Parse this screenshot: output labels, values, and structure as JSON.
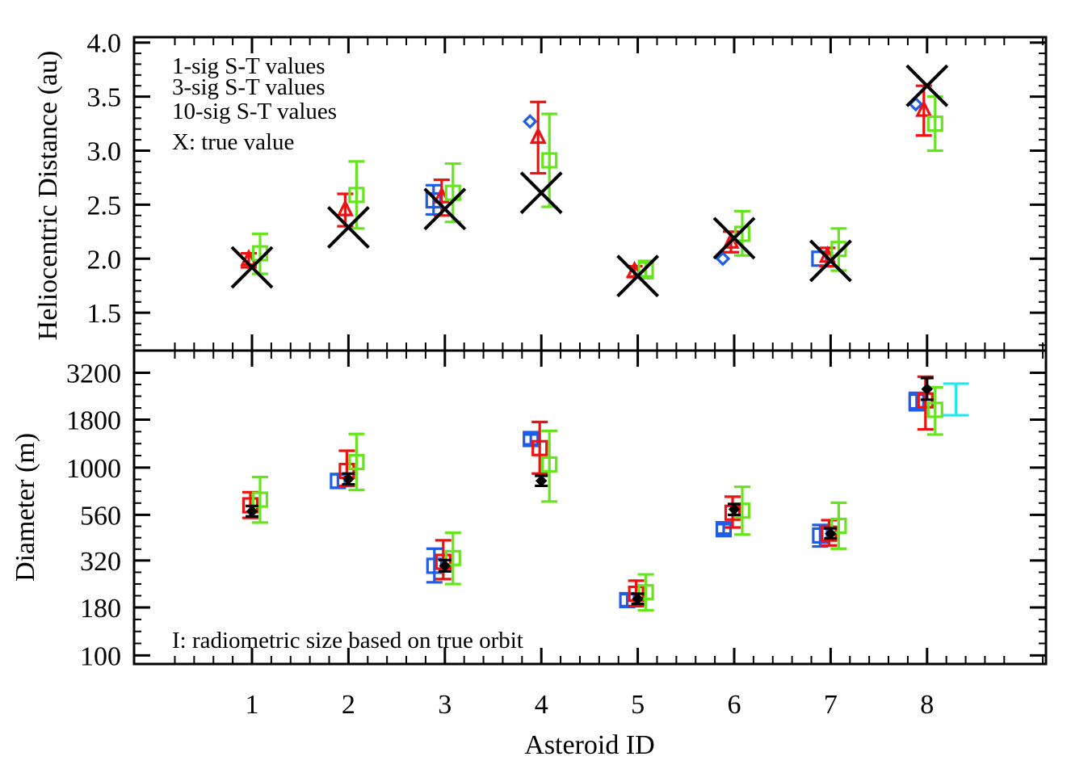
{
  "chart_data": [
    {
      "type": "scatter",
      "ylabel": "Heliocentric Distance (au)",
      "xlabel": "Asteroid ID",
      "categories": [
        "1",
        "2",
        "3",
        "4",
        "5",
        "6",
        "7",
        "8"
      ],
      "ylim": [
        1.15,
        4.05
      ],
      "yticks": [
        1.5,
        2.0,
        2.5,
        3.0,
        3.5,
        4.0
      ],
      "ytick_labels": [
        "1.5",
        "2.0",
        "2.5",
        "3.0",
        "3.5",
        "4.0"
      ],
      "legend": [
        {
          "label": "1-sig S-T values",
          "color": "#1f5de8"
        },
        {
          "label": "3-sig S-T values",
          "color": "#ee1111"
        },
        {
          "label": "10-sig S-T values",
          "color": "#66e41e"
        },
        {
          "label": "X: true value",
          "color": "#000000"
        }
      ],
      "series": [
        {
          "name": "1-sig",
          "marker": "diamond",
          "color": "#1f5de8",
          "points": [
            {
              "id": 3,
              "y": 2.54,
              "lo": 2.41,
              "hi": 2.68,
              "marker": "square"
            },
            {
              "id": 4,
              "y": 3.27
            },
            {
              "id": 6,
              "y": 2.0
            },
            {
              "id": 7,
              "y": 2.0,
              "marker": "square"
            },
            {
              "id": 8,
              "y": 3.43
            }
          ]
        },
        {
          "name": "3-sig",
          "marker": "triangle",
          "color": "#ee1111",
          "points": [
            {
              "id": 1,
              "y": 1.99,
              "lo": 1.92,
              "hi": 2.05
            },
            {
              "id": 2,
              "y": 2.45,
              "lo": 2.3,
              "hi": 2.6
            },
            {
              "id": 3,
              "y": 2.57,
              "lo": 2.4,
              "hi": 2.73
            },
            {
              "id": 4,
              "y": 3.12,
              "lo": 2.79,
              "hi": 3.45
            },
            {
              "id": 5,
              "y": 1.88,
              "lo": 1.83,
              "hi": 1.93
            },
            {
              "id": 6,
              "y": 2.15,
              "lo": 2.06,
              "hi": 2.25
            },
            {
              "id": 7,
              "y": 2.02,
              "lo": 1.93,
              "hi": 2.1
            },
            {
              "id": 8,
              "y": 3.37,
              "lo": 3.14,
              "hi": 3.6
            }
          ]
        },
        {
          "name": "10-sig",
          "marker": "square",
          "color": "#66e41e",
          "points": [
            {
              "id": 1,
              "y": 2.05,
              "lo": 1.86,
              "hi": 2.23
            },
            {
              "id": 2,
              "y": 2.59,
              "lo": 2.28,
              "hi": 2.9
            },
            {
              "id": 3,
              "y": 2.61,
              "lo": 2.34,
              "hi": 2.88
            },
            {
              "id": 4,
              "y": 2.91,
              "lo": 2.48,
              "hi": 3.34
            },
            {
              "id": 5,
              "y": 1.9,
              "lo": 1.82,
              "hi": 1.98
            },
            {
              "id": 6,
              "y": 2.23,
              "lo": 2.03,
              "hi": 2.44
            },
            {
              "id": 7,
              "y": 2.09,
              "lo": 1.89,
              "hi": 2.28
            },
            {
              "id": 8,
              "y": 3.25,
              "lo": 3.0,
              "hi": 3.5
            }
          ]
        },
        {
          "name": "true value",
          "marker": "X",
          "color": "#000000",
          "points": [
            {
              "id": 1,
              "y": 1.92
            },
            {
              "id": 2,
              "y": 2.29
            },
            {
              "id": 3,
              "y": 2.46
            },
            {
              "id": 4,
              "y": 2.61
            },
            {
              "id": 5,
              "y": 1.84
            },
            {
              "id": 6,
              "y": 2.19
            },
            {
              "id": 7,
              "y": 1.98
            },
            {
              "id": 8,
              "y": 3.6
            }
          ]
        }
      ]
    },
    {
      "type": "scatter",
      "ylabel": "Diameter (m)",
      "xlabel": "Asteroid ID",
      "categories": [
        "1",
        "2",
        "3",
        "4",
        "5",
        "6",
        "7",
        "8"
      ],
      "yscale": "log",
      "ylim": [
        90,
        4200
      ],
      "yticks": [
        100,
        180,
        320,
        560,
        1000,
        1800,
        3200
      ],
      "ytick_labels": [
        "100",
        "180",
        "320",
        "560",
        "1000",
        "1800",
        "3200"
      ],
      "annotation": "I: radiometric size based on true orbit",
      "series": [
        {
          "name": "1-sig",
          "marker": "square",
          "color": "#1f5de8",
          "points": [
            {
              "id": 2,
              "y": 850,
              "lo": 780,
              "hi": 920
            },
            {
              "id": 3,
              "y": 300,
              "lo": 245,
              "hi": 370
            },
            {
              "id": 4,
              "y": 1420,
              "lo": 1330,
              "hi": 1500
            },
            {
              "id": 5,
              "y": 197,
              "lo": 183,
              "hi": 212
            },
            {
              "id": 6,
              "y": 470,
              "lo": 445,
              "hi": 500
            },
            {
              "id": 7,
              "y": 435,
              "lo": 380,
              "hi": 495
            },
            {
              "id": 8,
              "y": 2250,
              "lo": 2020,
              "hi": 2500
            }
          ]
        },
        {
          "name": "3-sig",
          "marker": "square",
          "color": "#ee1111",
          "points": [
            {
              "id": 1,
              "y": 630,
              "lo": 540,
              "hi": 740
            },
            {
              "id": 2,
              "y": 960,
              "lo": 800,
              "hi": 1230
            },
            {
              "id": 3,
              "y": 315,
              "lo": 255,
              "hi": 410
            },
            {
              "id": 4,
              "y": 1270,
              "lo": 930,
              "hi": 1750
            },
            {
              "id": 5,
              "y": 213,
              "lo": 183,
              "hi": 250
            },
            {
              "id": 6,
              "y": 575,
              "lo": 480,
              "hi": 700
            },
            {
              "id": 7,
              "y": 445,
              "lo": 385,
              "hi": 525
            },
            {
              "id": 8,
              "y": 2280,
              "lo": 1600,
              "hi": 3050
            }
          ]
        },
        {
          "name": "10-sig",
          "marker": "square",
          "color": "#66e41e",
          "points": [
            {
              "id": 1,
              "y": 675,
              "lo": 510,
              "hi": 890
            },
            {
              "id": 2,
              "y": 1070,
              "lo": 760,
              "hi": 1510
            },
            {
              "id": 3,
              "y": 330,
              "lo": 240,
              "hi": 450
            },
            {
              "id": 4,
              "y": 1040,
              "lo": 660,
              "hi": 1570
            },
            {
              "id": 5,
              "y": 217,
              "lo": 174,
              "hi": 270
            },
            {
              "id": 6,
              "y": 590,
              "lo": 440,
              "hi": 790
            },
            {
              "id": 7,
              "y": 490,
              "lo": 370,
              "hi": 650
            },
            {
              "id": 8,
              "y": 2030,
              "lo": 1500,
              "hi": 2680
            }
          ]
        },
        {
          "name": "true",
          "marker": "diamond",
          "color": "#000000",
          "points": [
            {
              "id": 1,
              "y": 585,
              "lo": 550,
              "hi": 625
            },
            {
              "id": 2,
              "y": 870,
              "lo": 815,
              "hi": 930
            },
            {
              "id": 3,
              "y": 300,
              "lo": 280,
              "hi": 322
            },
            {
              "id": 4,
              "y": 850,
              "lo": 800,
              "hi": 905
            },
            {
              "id": 5,
              "y": 200,
              "lo": 188,
              "hi": 213
            },
            {
              "id": 6,
              "y": 600,
              "lo": 560,
              "hi": 640
            },
            {
              "id": 7,
              "y": 445,
              "lo": 420,
              "hi": 475
            },
            {
              "id": 8,
              "y": 2620,
              "lo": 2300,
              "hi": 3000
            }
          ]
        },
        {
          "name": "radiometric",
          "marker": "errorbar",
          "color": "#22e8ee",
          "points": [
            {
              "id": 8.3,
              "lo": 1900,
              "hi": 2800
            }
          ]
        }
      ]
    }
  ]
}
